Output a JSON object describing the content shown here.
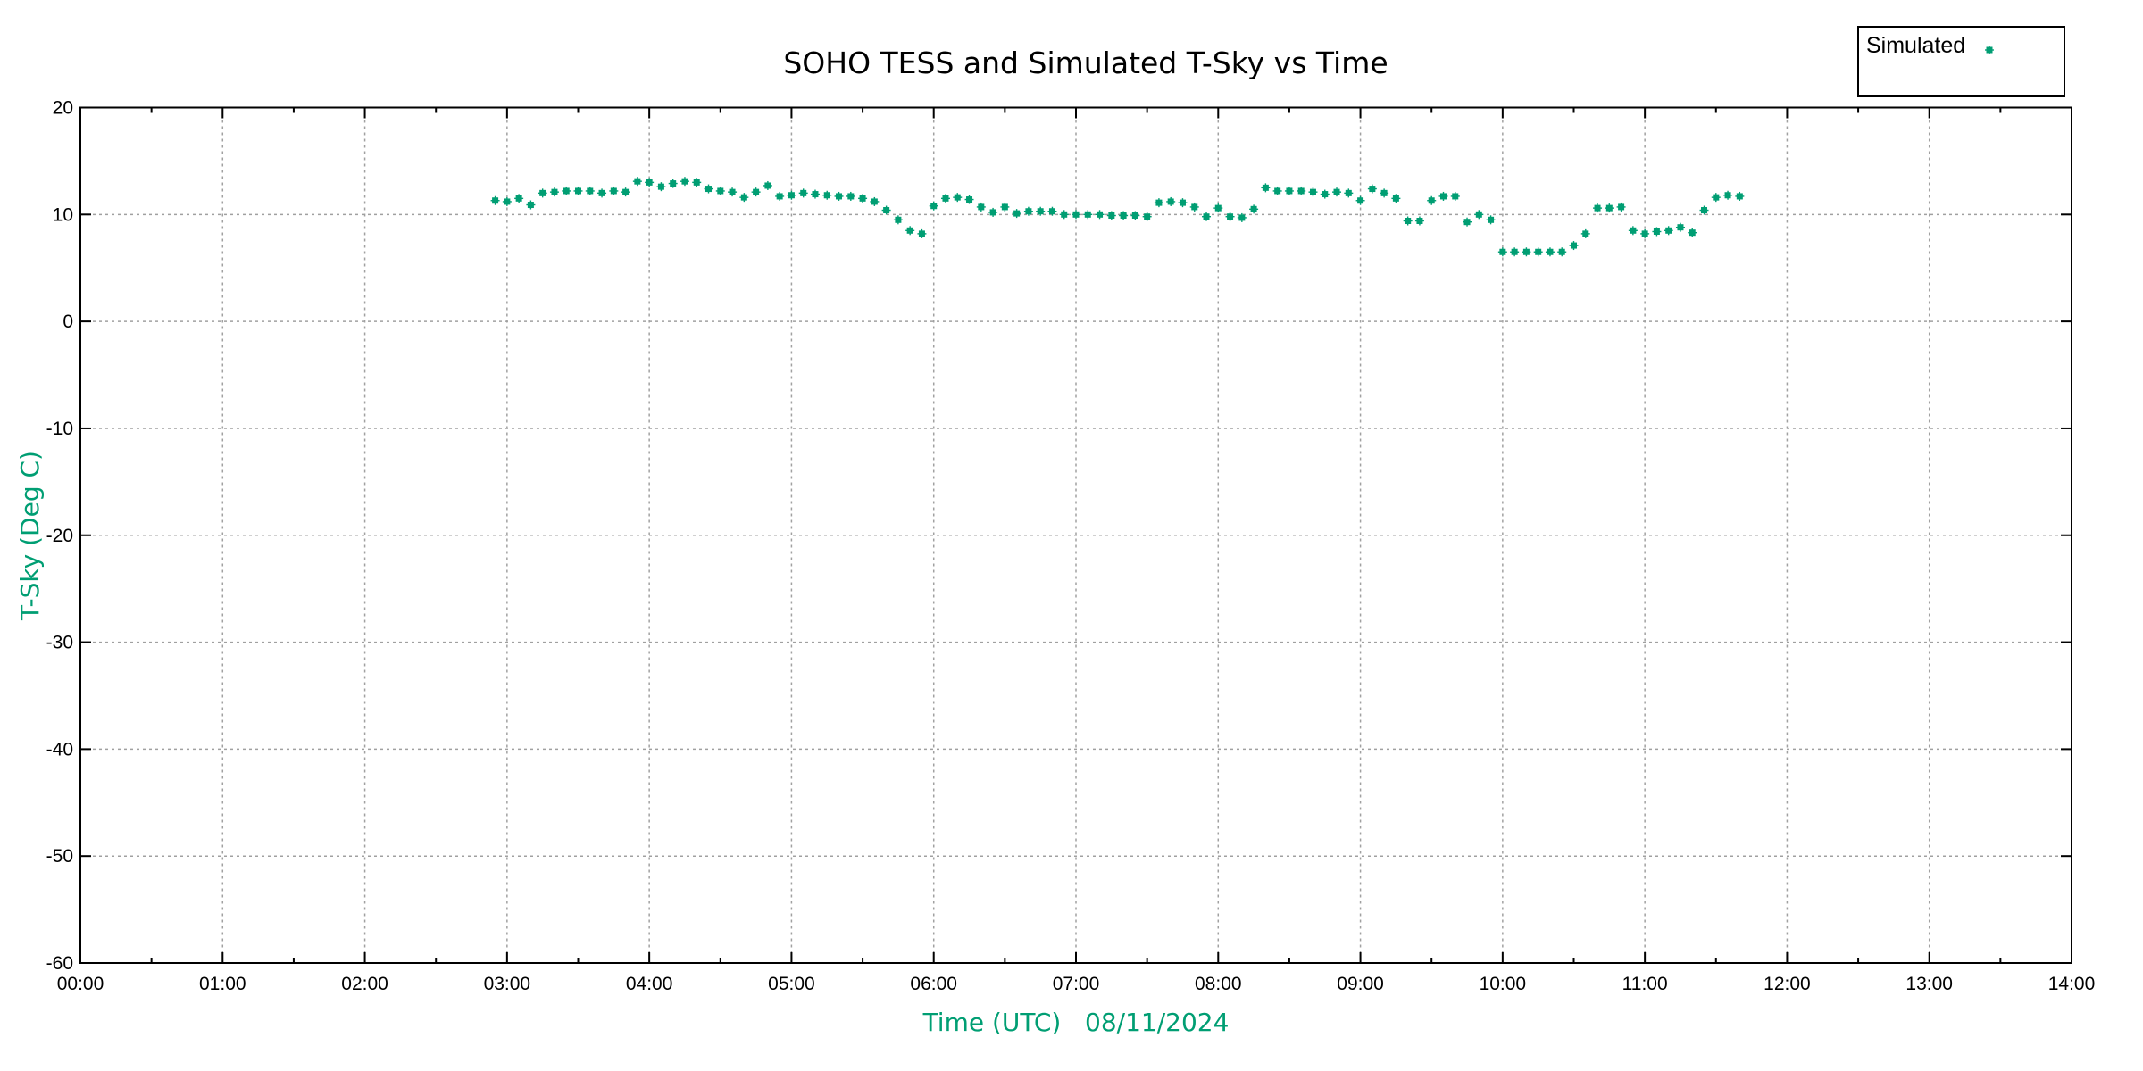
{
  "chart_data": {
    "type": "scatter",
    "title": "SOHO TESS and Simulated T-Sky vs Time",
    "xlabel": "Time (UTC)   08/11/2024",
    "ylabel": "T-Sky (Deg C)",
    "xlim": [
      "00:00",
      "14:00"
    ],
    "ylim": [
      -60,
      20
    ],
    "xticks": [
      "00:00",
      "01:00",
      "02:00",
      "03:00",
      "04:00",
      "05:00",
      "06:00",
      "07:00",
      "08:00",
      "09:00",
      "10:00",
      "11:00",
      "12:00",
      "13:00",
      "14:00"
    ],
    "yticks": [
      "20",
      "10",
      "0",
      "-10",
      "-20",
      "-30",
      "-40",
      "-50",
      "-60"
    ],
    "grid": true,
    "legend_position": "top-right",
    "series_color": "#009e73",
    "label_color": "#009e73",
    "series": [
      {
        "name": "Simulated",
        "x": [
          "02:55",
          "03:00",
          "03:05",
          "03:10",
          "03:15",
          "03:20",
          "03:25",
          "03:30",
          "03:35",
          "03:40",
          "03:45",
          "03:50",
          "03:55",
          "04:00",
          "04:05",
          "04:10",
          "04:15",
          "04:20",
          "04:25",
          "04:30",
          "04:35",
          "04:40",
          "04:45",
          "04:50",
          "04:55",
          "05:00",
          "05:05",
          "05:10",
          "05:15",
          "05:20",
          "05:25",
          "05:30",
          "05:35",
          "05:40",
          "05:45",
          "05:50",
          "05:55",
          "06:00",
          "06:05",
          "06:10",
          "06:15",
          "06:20",
          "06:25",
          "06:30",
          "06:35",
          "06:40",
          "06:45",
          "06:50",
          "06:55",
          "07:00",
          "07:05",
          "07:10",
          "07:15",
          "07:20",
          "07:25",
          "07:30",
          "07:35",
          "07:40",
          "07:45",
          "07:50",
          "07:55",
          "08:00",
          "08:05",
          "08:10",
          "08:15",
          "08:20",
          "08:25",
          "08:30",
          "08:35",
          "08:40",
          "08:45",
          "08:50",
          "08:55",
          "09:00",
          "09:05",
          "09:10",
          "09:15",
          "09:20",
          "09:25",
          "09:30",
          "09:35",
          "09:40",
          "09:45",
          "09:50",
          "09:55",
          "10:00",
          "10:05",
          "10:10",
          "10:15",
          "10:20",
          "10:25",
          "10:30",
          "10:35",
          "10:40",
          "10:45",
          "10:50",
          "10:55",
          "11:00",
          "11:05",
          "11:10",
          "11:15",
          "11:20",
          "11:25",
          "11:30",
          "11:35",
          "11:40"
        ],
        "y": [
          11.3,
          11.2,
          11.5,
          10.9,
          12.0,
          12.1,
          12.2,
          12.2,
          12.2,
          12.0,
          12.2,
          12.1,
          13.1,
          13.0,
          12.6,
          12.9,
          13.1,
          13.0,
          12.4,
          12.2,
          12.1,
          11.6,
          12.1,
          12.7,
          11.7,
          11.8,
          12.0,
          11.9,
          11.8,
          11.7,
          11.7,
          11.5,
          11.2,
          10.4,
          9.5,
          8.5,
          8.2,
          10.8,
          11.5,
          11.6,
          11.4,
          10.7,
          10.2,
          10.7,
          10.1,
          10.3,
          10.3,
          10.3,
          10.0,
          10.0,
          10.0,
          10.0,
          9.9,
          9.9,
          9.9,
          9.8,
          11.1,
          11.2,
          11.1,
          10.7,
          9.8,
          10.6,
          9.8,
          9.7,
          10.5,
          12.5,
          12.2,
          12.2,
          12.2,
          12.1,
          11.9,
          12.1,
          12.0,
          11.3,
          12.4,
          12.0,
          11.5,
          9.4,
          9.4,
          11.3,
          11.7,
          11.7,
          9.3,
          10.0,
          9.5,
          6.5,
          6.5,
          6.5,
          6.5,
          6.5,
          6.5,
          7.1,
          8.2,
          10.6,
          10.6,
          10.7,
          8.5,
          8.2,
          8.4,
          8.5,
          8.8,
          8.3,
          10.4,
          11.6,
          11.8,
          11.7
        ]
      }
    ]
  }
}
